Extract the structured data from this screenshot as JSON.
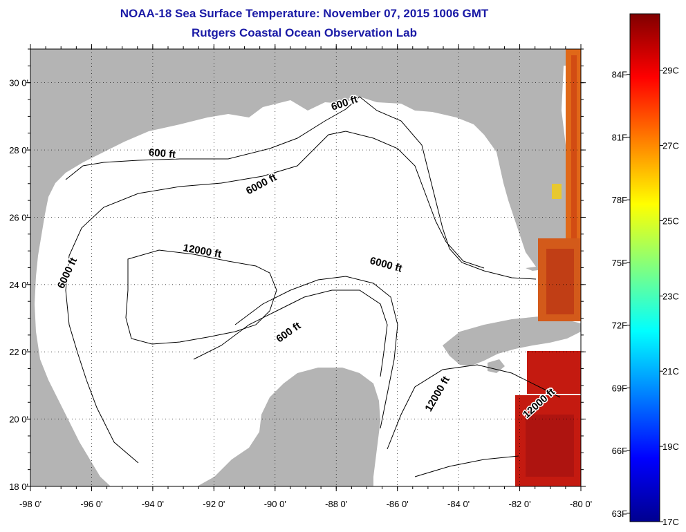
{
  "title": "NOAA-18 Sea Surface Temperature:  November 07, 2015 1006 GMT",
  "subtitle": "Rutgers Coastal Ocean Observation Lab",
  "map": {
    "lon_range": [
      -98,
      -80
    ],
    "lat_range": [
      18,
      31
    ],
    "lon_ticks": [
      {
        "value": -98,
        "label": "-98 0'"
      },
      {
        "value": -96,
        "label": "-96 0'"
      },
      {
        "value": -94,
        "label": "-94 0'"
      },
      {
        "value": -92,
        "label": "-92 0'"
      },
      {
        "value": -90,
        "label": "-90 0'"
      },
      {
        "value": -88,
        "label": "-88 0'"
      },
      {
        "value": -86,
        "label": "-86 0'"
      },
      {
        "value": -84,
        "label": "-84 0'"
      },
      {
        "value": -82,
        "label": "-82 0'"
      },
      {
        "value": -80,
        "label": "-80 0'"
      }
    ],
    "lat_ticks": [
      {
        "value": 30,
        "label": "30 0'"
      },
      {
        "value": 28,
        "label": "28 0'"
      },
      {
        "value": 26,
        "label": "26 0'"
      },
      {
        "value": 24,
        "label": "24 0'"
      },
      {
        "value": 22,
        "label": "22 0'"
      },
      {
        "value": 20,
        "label": "20 0'"
      },
      {
        "value": 18,
        "label": "18 0'"
      }
    ],
    "grid": "dotted",
    "land_color": "#b4b4b4",
    "water_color": "#ffffff",
    "contour_labels": [
      {
        "text": "600 ft",
        "lon": -93.7,
        "lat": 27.8,
        "rotate": 5
      },
      {
        "text": "600 ft",
        "lon": -87.7,
        "lat": 29.3,
        "rotate": -18
      },
      {
        "text": "6000 ft",
        "lon": -90.4,
        "lat": 26.9,
        "rotate": -28
      },
      {
        "text": "12000 ft",
        "lon": -92.4,
        "lat": 24.9,
        "rotate": 10
      },
      {
        "text": "6000 ft",
        "lon": -86.4,
        "lat": 24.5,
        "rotate": 15
      },
      {
        "text": "6000 ft",
        "lon": -96.7,
        "lat": 24.3,
        "rotate": -65
      },
      {
        "text": "600 ft",
        "lon": -89.5,
        "lat": 22.5,
        "rotate": -35
      },
      {
        "text": "12000 ft",
        "lon": -84.6,
        "lat": 20.7,
        "rotate": -60
      },
      {
        "text": "12000 ft",
        "lon": -81.3,
        "lat": 20.4,
        "rotate": -42
      }
    ]
  },
  "colorbar": {
    "stops": [
      "#00008f",
      "#0000ff",
      "#0080ff",
      "#00ffff",
      "#80ff80",
      "#ffff00",
      "#ff8000",
      "#ff0000",
      "#800000"
    ],
    "range_c": [
      17,
      30.5
    ],
    "celsius_ticks": [
      {
        "value": 29,
        "label": "29C"
      },
      {
        "value": 27,
        "label": "27C"
      },
      {
        "value": 25,
        "label": "25C"
      },
      {
        "value": 23,
        "label": "23C"
      },
      {
        "value": 21,
        "label": "21C"
      },
      {
        "value": 19,
        "label": "19C"
      },
      {
        "value": 17,
        "label": "17C"
      }
    ],
    "fahrenheit_ticks": [
      {
        "value": 84,
        "label": "84F"
      },
      {
        "value": 81,
        "label": "81F"
      },
      {
        "value": 78,
        "label": "78F"
      },
      {
        "value": 75,
        "label": "75F"
      },
      {
        "value": 72,
        "label": "72F"
      },
      {
        "value": 69,
        "label": "69F"
      },
      {
        "value": 66,
        "label": "66F"
      },
      {
        "value": 63,
        "label": "63F"
      }
    ]
  }
}
